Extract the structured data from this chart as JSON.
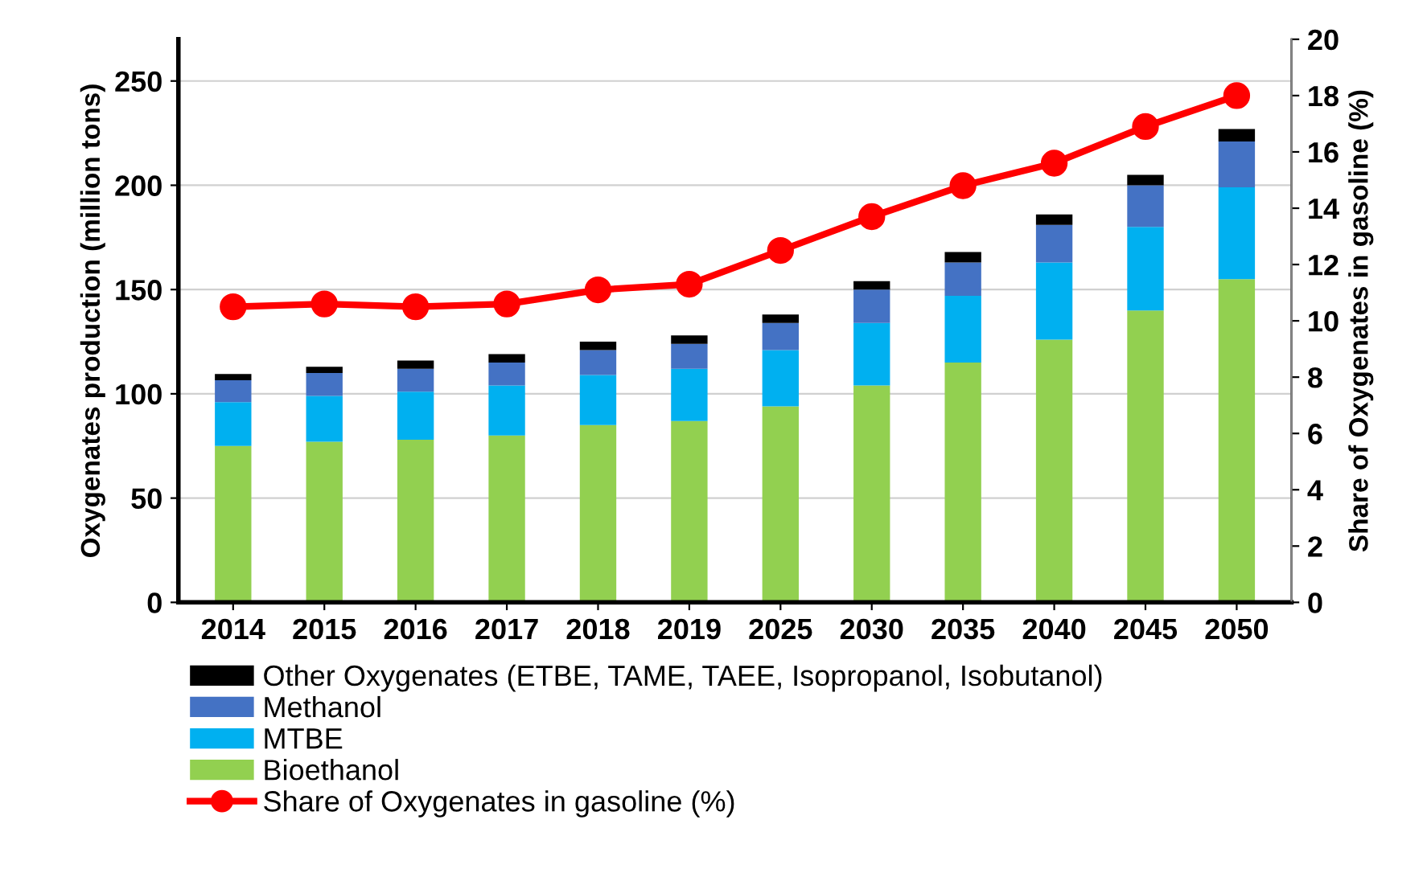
{
  "chart_data": {
    "type": "bar",
    "stacked": true,
    "categories": [
      "2014",
      "2015",
      "2016",
      "2017",
      "2018",
      "2019",
      "2025",
      "2030",
      "2035",
      "2040",
      "2045",
      "2050"
    ],
    "series": [
      {
        "name": "Bioethanol",
        "color": "#92d050",
        "values": [
          75,
          77,
          78,
          80,
          85,
          87,
          94,
          104,
          115,
          126,
          140,
          155
        ]
      },
      {
        "name": "MTBE",
        "color": "#00b0f0",
        "values": [
          21,
          22,
          23,
          24,
          24,
          25,
          27,
          30,
          32,
          37,
          40,
          44
        ]
      },
      {
        "name": "Methanol",
        "color": "#4472c4",
        "values": [
          10.5,
          11,
          11,
          11,
          12,
          12,
          13,
          16,
          16,
          18,
          20,
          22
        ]
      },
      {
        "name": "Other Oxygenates (ETBE, TAME, TAEE, Isopropanol, Isobutanol)",
        "color": "#000000",
        "values": [
          3,
          3,
          4,
          4,
          4,
          4,
          4,
          4,
          5,
          5,
          5,
          6
        ]
      },
      {
        "name": "Share of Oxygenates in gasoline (%)",
        "type": "line",
        "axis": "y2",
        "color": "#ff0000",
        "marker": "circle",
        "values": [
          10.5,
          10.6,
          10.5,
          10.6,
          11.1,
          11.3,
          12.5,
          13.7,
          14.8,
          15.6,
          16.9,
          18.0
        ]
      }
    ],
    "ylabel": "Oxygenates production (million tons)",
    "y2label": "Share of Oxygenates in gasoline (%)",
    "ylim": [
      0,
      270
    ],
    "yticks": [
      0,
      50,
      100,
      150,
      200,
      250
    ],
    "y2lim": [
      0,
      20
    ],
    "y2ticks": [
      0,
      2,
      4,
      6,
      8,
      10,
      12,
      14,
      16,
      18,
      20
    ],
    "grid": "y",
    "legend": "bottom"
  }
}
